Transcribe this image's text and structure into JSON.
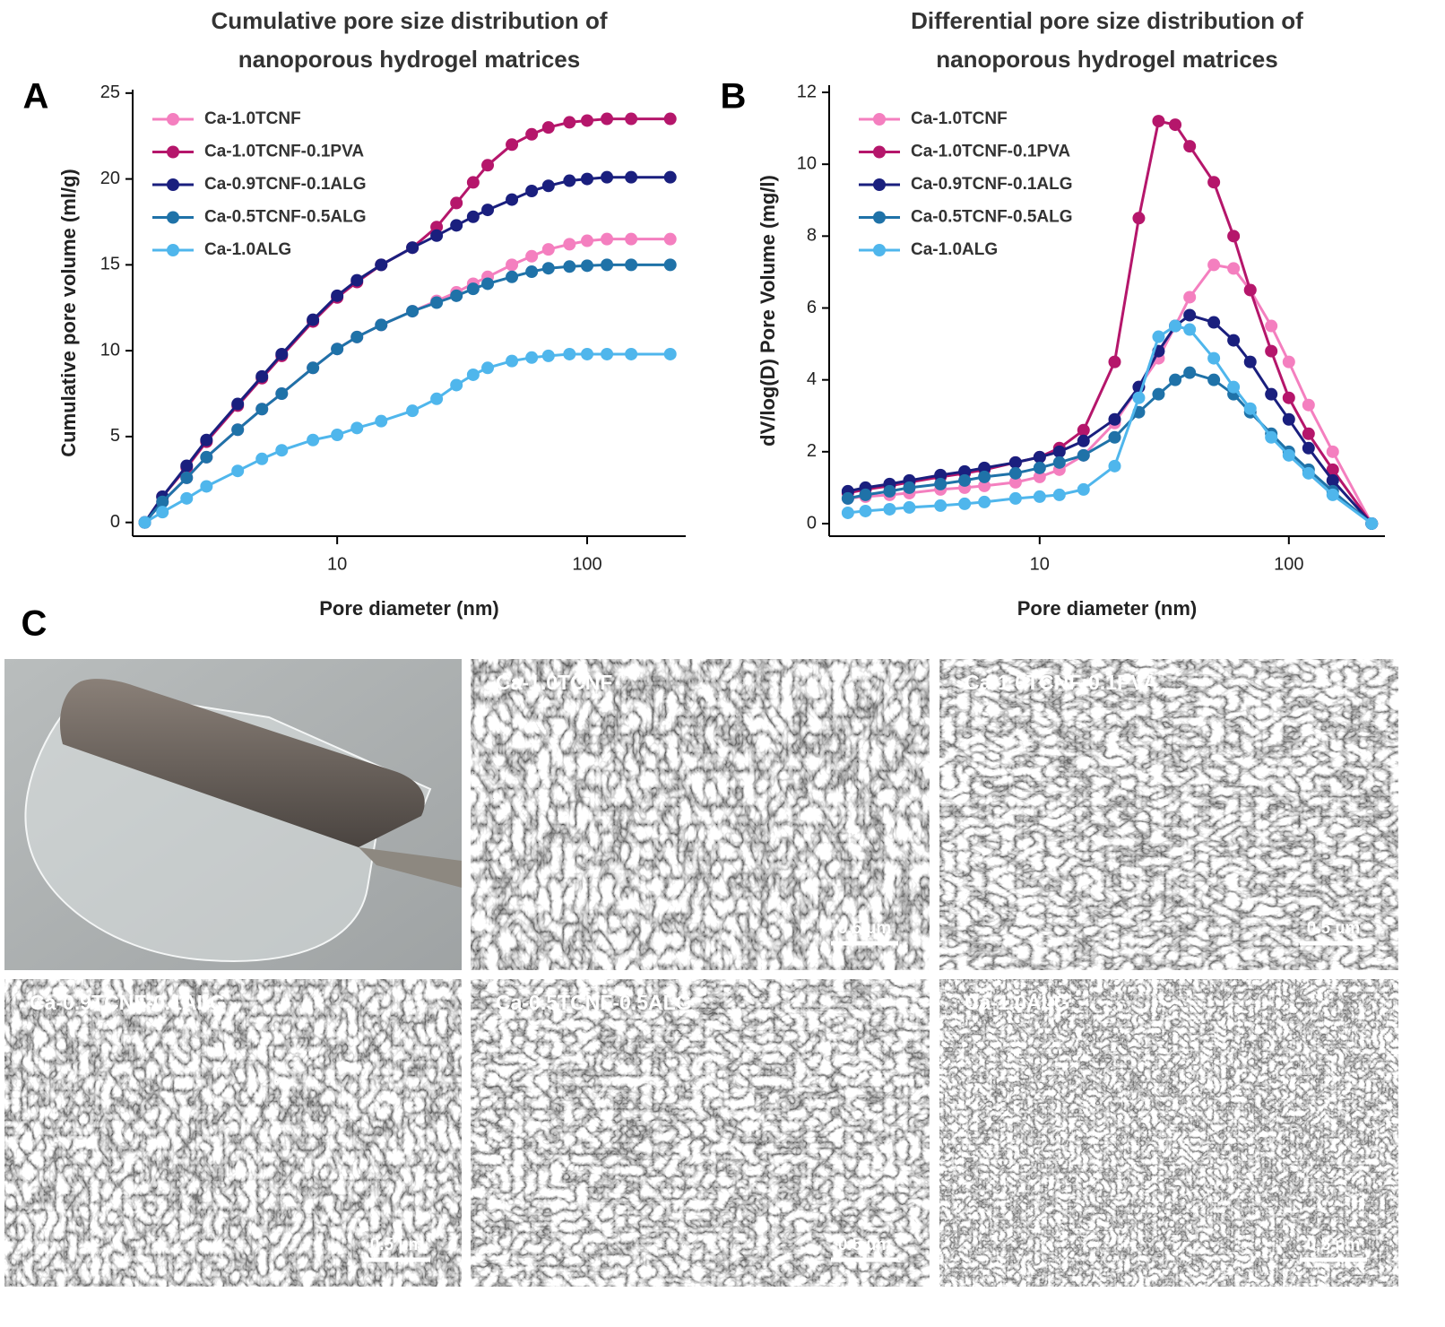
{
  "chart_data": [
    {
      "type": "line",
      "panel_label": "A",
      "title": [
        "Cumulative pore size distribution of",
        "nanoporous hydrogel matrices"
      ],
      "x_label": "Pore diameter (nm)",
      "y_label": "Cumulative pore volume (ml/g)",
      "xscale": "log",
      "xlim": [
        1.52,
        248
      ],
      "xticks": [
        10,
        100
      ],
      "ylim": [
        -0.8,
        25.2
      ],
      "yticks": [
        0,
        5,
        10,
        15,
        20,
        25
      ],
      "legend_loc": "upper left",
      "x": [
        1.7,
        2,
        2.5,
        3,
        4,
        5,
        6,
        8,
        10,
        12,
        15,
        20,
        25,
        30,
        35,
        40,
        50,
        60,
        70,
        85,
        100,
        120,
        150,
        215
      ],
      "series": [
        {
          "name": "Ca-1.0TCNF",
          "color": "#f47fbf",
          "values": [
            0,
            1.2,
            2.6,
            3.8,
            5.4,
            6.6,
            7.5,
            9,
            10.1,
            10.8,
            11.5,
            12.3,
            12.9,
            13.4,
            13.9,
            14.3,
            15,
            15.5,
            15.9,
            16.2,
            16.4,
            16.5,
            16.5,
            16.5
          ]
        },
        {
          "name": "Ca-1.0TCNF-0.1PVA",
          "color": "#b5166b",
          "values": [
            0,
            1.5,
            3.2,
            4.7,
            6.8,
            8.4,
            9.7,
            11.7,
            13.1,
            14,
            15,
            16,
            17.2,
            18.6,
            19.8,
            20.8,
            22,
            22.6,
            23,
            23.3,
            23.4,
            23.5,
            23.5,
            23.5
          ]
        },
        {
          "name": "Ca-0.9TCNF-0.1ALG",
          "color": "#1a1f7e",
          "values": [
            0,
            1.5,
            3.3,
            4.8,
            6.9,
            8.5,
            9.8,
            11.8,
            13.2,
            14.1,
            15,
            16,
            16.7,
            17.3,
            17.8,
            18.2,
            18.8,
            19.3,
            19.6,
            19.9,
            20,
            20.1,
            20.1,
            20.1
          ]
        },
        {
          "name": "Ca-0.5TCNF-0.5ALG",
          "color": "#1f72a8",
          "values": [
            0,
            1.2,
            2.6,
            3.8,
            5.4,
            6.6,
            7.5,
            9,
            10.1,
            10.8,
            11.5,
            12.3,
            12.8,
            13.2,
            13.6,
            13.9,
            14.3,
            14.6,
            14.8,
            14.9,
            14.95,
            15,
            15,
            15
          ]
        },
        {
          "name": "Ca-1.0ALG",
          "color": "#4fb6ec",
          "values": [
            0,
            0.6,
            1.4,
            2.1,
            3,
            3.7,
            4.2,
            4.8,
            5.1,
            5.5,
            5.9,
            6.5,
            7.2,
            8,
            8.6,
            9,
            9.4,
            9.6,
            9.7,
            9.8,
            9.8,
            9.8,
            9.8,
            9.8
          ]
        }
      ]
    },
    {
      "type": "line",
      "panel_label": "B",
      "title": [
        "Differential pore size distribution of",
        "nanoporous hydrogel matrices"
      ],
      "x_label": "Pore diameter (nm)",
      "y_label": "dV/log(D) Pore Volume (mg/l)",
      "xscale": "log",
      "xlim": [
        1.43,
        243
      ],
      "xticks": [
        10,
        100
      ],
      "ylim": [
        -0.35,
        12.2
      ],
      "yticks": [
        0,
        2,
        4,
        6,
        8,
        10,
        12
      ],
      "legend_loc": "upper left",
      "x": [
        1.7,
        2,
        2.5,
        3,
        4,
        5,
        6,
        8,
        10,
        12,
        15,
        20,
        25,
        30,
        35,
        40,
        50,
        60,
        70,
        85,
        100,
        120,
        150,
        215
      ],
      "series": [
        {
          "name": "Ca-1.0TCNF",
          "color": "#f47fbf",
          "values": [
            0.7,
            0.75,
            0.8,
            0.85,
            0.95,
            1,
            1.05,
            1.15,
            1.3,
            1.5,
            1.9,
            2.8,
            3.8,
            4.6,
            5.5,
            6.3,
            7.2,
            7.1,
            6.5,
            5.5,
            4.5,
            3.3,
            2,
            0
          ]
        },
        {
          "name": "Ca-1.0TCNF-0.1PVA",
          "color": "#b5166b",
          "values": [
            0.85,
            0.95,
            1.05,
            1.15,
            1.3,
            1.4,
            1.5,
            1.7,
            1.85,
            2.1,
            2.6,
            4.5,
            8.5,
            11.2,
            11.1,
            10.5,
            9.5,
            8,
            6.5,
            4.8,
            3.5,
            2.5,
            1.5,
            0
          ]
        },
        {
          "name": "Ca-0.9TCNF-0.1ALG",
          "color": "#1a1f7e",
          "values": [
            0.9,
            1,
            1.1,
            1.2,
            1.35,
            1.45,
            1.55,
            1.7,
            1.85,
            2,
            2.3,
            2.9,
            3.8,
            4.8,
            5.5,
            5.8,
            5.6,
            5.1,
            4.5,
            3.6,
            2.9,
            2.1,
            1.2,
            0
          ]
        },
        {
          "name": "Ca-0.5TCNF-0.5ALG",
          "color": "#1f72a8",
          "values": [
            0.7,
            0.8,
            0.9,
            1,
            1.1,
            1.2,
            1.3,
            1.4,
            1.55,
            1.7,
            1.9,
            2.4,
            3.1,
            3.6,
            4,
            4.2,
            4,
            3.6,
            3.1,
            2.5,
            2,
            1.5,
            0.9,
            0
          ]
        },
        {
          "name": "Ca-1.0ALG",
          "color": "#4fb6ec",
          "values": [
            0.3,
            0.35,
            0.4,
            0.45,
            0.5,
            0.55,
            0.6,
            0.7,
            0.75,
            0.8,
            0.95,
            1.6,
            3.5,
            5.2,
            5.5,
            5.4,
            4.6,
            3.8,
            3.2,
            2.4,
            1.9,
            1.4,
            0.8,
            0
          ]
        }
      ]
    }
  ],
  "panel_c": {
    "label": "C",
    "images": [
      {
        "label": "Ca-1.0TCNF",
        "scale_bar": "0.5 µm"
      },
      {
        "label": "Ca-1.0TCNF-0.1PVA",
        "scale_bar": "0.5 µm"
      },
      {
        "label": "Ca-0.9TCNF-0.1ALG",
        "scale_bar": "0.5 µm"
      },
      {
        "label": "Ca-0.5TCNF-0.5ALG",
        "scale_bar": "0.5 µm"
      },
      {
        "label": "Ca-1.0ALG",
        "scale_bar": "0.5 µm"
      }
    ]
  }
}
